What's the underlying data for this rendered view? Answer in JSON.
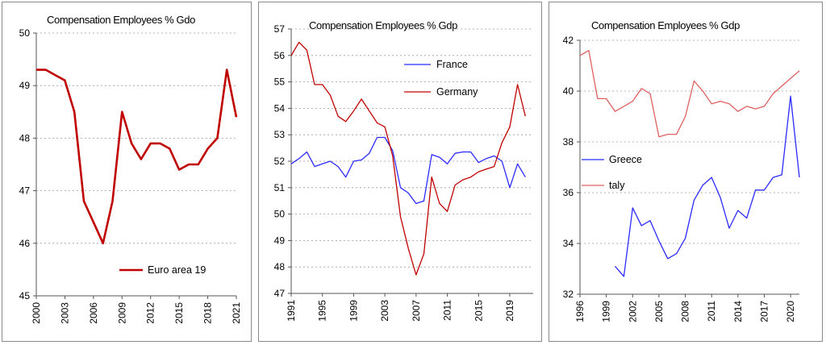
{
  "colors": {
    "red": "#c00000",
    "blue": "#2b2bff",
    "grid": "#9a9a9a",
    "axis": "#555555"
  },
  "chart_data": [
    {
      "type": "line",
      "title": "Compensation Employees % Gdo",
      "xlim": [
        2000,
        2021
      ],
      "ylim": [
        45,
        50
      ],
      "xticks": [
        2000,
        2003,
        2006,
        2009,
        2012,
        2015,
        2018,
        2021
      ],
      "xtick_labels": [
        "2000",
        "2003",
        "2006",
        "2009",
        "2012",
        "2015",
        "2018",
        "2021"
      ],
      "yticks": [
        45,
        46,
        47,
        48,
        49,
        50
      ],
      "grid": "horizontal dashed",
      "legend": "bottom-right",
      "series": [
        {
          "name": "Euro area 19",
          "color": "#c00000",
          "width": 2.6,
          "x": [
            2000,
            2001,
            2002,
            2003,
            2004,
            2005,
            2006,
            2007,
            2008,
            2009,
            2010,
            2011,
            2012,
            2013,
            2014,
            2015,
            2016,
            2017,
            2018,
            2019,
            2020,
            2021
          ],
          "y": [
            49.3,
            49.3,
            49.2,
            49.1,
            48.5,
            46.8,
            46.4,
            46.0,
            46.8,
            48.5,
            47.9,
            47.6,
            47.9,
            47.9,
            47.8,
            47.4,
            47.5,
            47.5,
            47.8,
            48.0,
            49.3,
            48.4
          ]
        }
      ]
    },
    {
      "type": "line",
      "title": "Compensation Employees % Gdp",
      "xlim": [
        1991,
        2022
      ],
      "ylim": [
        47,
        57
      ],
      "xticks": [
        1991,
        1995,
        1999,
        2003,
        2007,
        2011,
        2015,
        2019
      ],
      "xtick_labels": [
        "1991",
        "1995",
        "1999",
        "2003",
        "2007",
        "2011",
        "2015",
        "2019"
      ],
      "yticks": [
        47,
        48,
        49,
        50,
        51,
        52,
        53,
        54,
        55,
        56,
        57
      ],
      "grid": "horizontal dashed",
      "legend": "top-right",
      "series": [
        {
          "name": "France",
          "color": "#2b2bff",
          "width": 1.3,
          "x": [
            1991,
            1992,
            1993,
            1994,
            1995,
            1996,
            1997,
            1998,
            1999,
            2000,
            2001,
            2002,
            2003,
            2004,
            2005,
            2006,
            2007,
            2008,
            2009,
            2010,
            2011,
            2012,
            2013,
            2014,
            2015,
            2016,
            2017,
            2018,
            2019,
            2020,
            2021
          ],
          "y": [
            51.9,
            52.1,
            52.35,
            51.8,
            51.9,
            52.0,
            51.8,
            51.4,
            52.0,
            52.05,
            52.3,
            52.9,
            52.9,
            52.4,
            51.0,
            50.8,
            50.4,
            50.5,
            52.25,
            52.15,
            51.9,
            52.3,
            52.35,
            52.35,
            51.95,
            52.1,
            52.2,
            52.0,
            51.0,
            51.9,
            51.4
          ]
        },
        {
          "name": "Germany",
          "color": "#c00000",
          "width": 1.3,
          "x": [
            1991,
            1992,
            1993,
            1994,
            1995,
            1996,
            1997,
            1998,
            1999,
            2000,
            2001,
            2002,
            2003,
            2004,
            2005,
            2006,
            2007,
            2008,
            2009,
            2010,
            2011,
            2012,
            2013,
            2014,
            2015,
            2016,
            2017,
            2018,
            2019,
            2020,
            2021
          ],
          "y": [
            56.0,
            56.5,
            56.2,
            54.9,
            54.9,
            54.5,
            53.7,
            53.5,
            53.9,
            54.35,
            53.9,
            53.45,
            53.3,
            52.2,
            49.9,
            48.7,
            47.7,
            48.5,
            51.4,
            50.4,
            50.1,
            51.1,
            51.3,
            51.4,
            51.6,
            51.7,
            51.8,
            52.7,
            53.3,
            54.9,
            53.7
          ]
        }
      ]
    },
    {
      "type": "line",
      "title": "Compensation Employees % Gdp",
      "xlim": [
        1996,
        2021
      ],
      "ylim": [
        32,
        42
      ],
      "xticks": [
        1996,
        1999,
        2002,
        2005,
        2008,
        2011,
        2014,
        2017,
        2020
      ],
      "xtick_labels": [
        "1996",
        "1999",
        "2002",
        "2005",
        "2008",
        "2011",
        "2014",
        "2017",
        "2020"
      ],
      "yticks": [
        32,
        34,
        36,
        38,
        40,
        42
      ],
      "ytick_labels": [
        "32",
        "34",
        "36",
        "38",
        "40",
        "42"
      ],
      "grid": "horizontal dashed",
      "legend": "middle-left",
      "series": [
        {
          "name": "Greece",
          "color": "#2b2bff",
          "width": 1.3,
          "x": [
            2000,
            2001,
            2002,
            2003,
            2004,
            2005,
            2006,
            2007,
            2008,
            2009,
            2010,
            2011,
            2012,
            2013,
            2014,
            2015,
            2016,
            2017,
            2018,
            2019,
            2020,
            2021
          ],
          "y": [
            33.1,
            32.7,
            35.4,
            34.7,
            34.9,
            34.1,
            33.4,
            33.6,
            34.2,
            35.7,
            36.3,
            36.6,
            35.8,
            34.6,
            35.3,
            35.0,
            36.1,
            36.1,
            36.6,
            36.7,
            39.8,
            36.6
          ]
        },
        {
          "name": "Italy",
          "color": "#e06060",
          "width": 1.3,
          "x": [
            1996,
            1997,
            1998,
            1999,
            2000,
            2001,
            2002,
            2003,
            2004,
            2005,
            2006,
            2007,
            2008,
            2009,
            2010,
            2011,
            2012,
            2013,
            2014,
            2015,
            2016,
            2017,
            2018,
            2019,
            2020,
            2021
          ],
          "y": [
            41.4,
            41.6,
            39.7,
            39.7,
            39.2,
            39.4,
            39.6,
            40.1,
            39.9,
            38.2,
            38.3,
            38.3,
            39.0,
            40.4,
            40.0,
            39.5,
            39.6,
            39.5,
            39.2,
            39.4,
            39.3,
            39.4,
            39.9,
            40.2,
            40.5,
            40.8
          ]
        }
      ]
    }
  ],
  "legends": [
    {
      "label": "Euro area 19"
    },
    {
      "label": "France"
    },
    {
      "label": "Germany"
    },
    {
      "label": "Greece"
    },
    {
      "label": "taly"
    }
  ]
}
